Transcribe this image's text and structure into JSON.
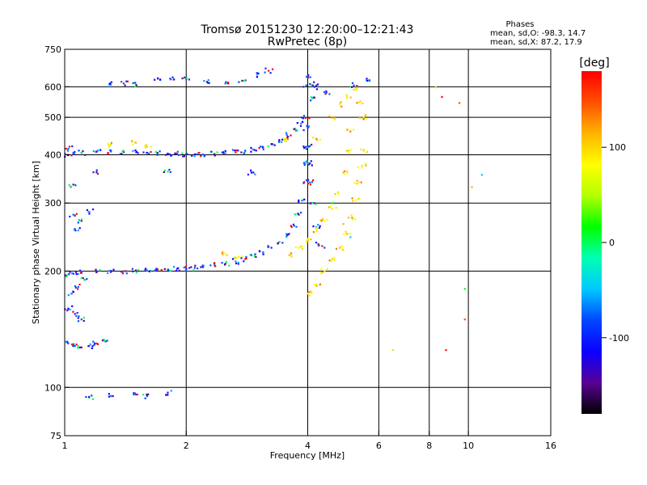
{
  "title": "Tromsø 20151230 12:20:00–12:21:43",
  "subtitle": "RwPretec (8p)",
  "stats": {
    "heading": "Phases",
    "line_o": "mean, sd,O: -98.3, 14.7",
    "line_x": "mean, sd,X: 87.2, 17.9"
  },
  "chart_data": {
    "type": "scatter",
    "x_scale": "log2",
    "y_scale": "log",
    "xlabel": "Frequency [MHz]",
    "ylabel": "Stationary phase Virtual Height [km]",
    "xlim": [
      1,
      16
    ],
    "ylim": [
      75,
      750
    ],
    "x_ticks": [
      {
        "value": 1,
        "label": "1"
      },
      {
        "value": 2,
        "label": "2"
      },
      {
        "value": 4,
        "label": "4"
      },
      {
        "value": 6,
        "label": "6"
      },
      {
        "value": 8,
        "label": "8"
      },
      {
        "value": 10,
        "label": "10"
      },
      {
        "value": 16,
        "label": "16"
      }
    ],
    "y_ticks": [
      {
        "value": 75,
        "label": "75"
      },
      {
        "value": 100,
        "label": "100"
      },
      {
        "value": 200,
        "label": "200"
      },
      {
        "value": 300,
        "label": "300"
      },
      {
        "value": 400,
        "label": "400"
      },
      {
        "value": 500,
        "label": "500"
      },
      {
        "value": 600,
        "label": "600"
      },
      {
        "value": 750,
        "label": "750"
      }
    ],
    "grid": true,
    "colorbar": {
      "label": "[deg]",
      "range": [
        -180,
        180
      ],
      "ticks": [
        {
          "value": 100,
          "label": "100"
        },
        {
          "value": 0,
          "label": "0"
        },
        {
          "value": -100,
          "label": "-100"
        }
      ],
      "colors": [
        "#000000",
        "#5a0096",
        "#0a00ff",
        "#0046ff",
        "#00c8ff",
        "#00ffb4",
        "#00ff00",
        "#b4ff00",
        "#ffff00",
        "#ffb400",
        "#ff5000",
        "#ff0000"
      ]
    },
    "series": [
      {
        "points": [
          [
            1.02,
            400
          ],
          [
            1.05,
            402
          ],
          [
            1.1,
            405
          ],
          [
            1.2,
            408
          ],
          [
            1.3,
            408
          ],
          [
            1.4,
            407
          ],
          [
            1.5,
            406
          ],
          [
            1.6,
            405
          ],
          [
            1.7,
            404
          ],
          [
            1.8,
            403
          ],
          [
            1.9,
            402
          ],
          [
            2.0,
            402
          ],
          [
            2.1,
            401
          ],
          [
            2.2,
            401
          ],
          [
            2.35,
            402
          ],
          [
            2.5,
            404
          ],
          [
            2.65,
            406
          ],
          [
            2.8,
            409
          ],
          [
            2.95,
            412
          ],
          [
            3.1,
            418
          ],
          [
            3.25,
            426
          ],
          [
            3.4,
            437
          ],
          [
            3.55,
            450
          ],
          [
            3.7,
            466
          ],
          [
            3.85,
            482
          ],
          [
            3.95,
            498
          ],
          [
            1.02,
            196
          ],
          [
            1.05,
            197
          ],
          [
            1.1,
            198
          ],
          [
            1.2,
            199
          ],
          [
            1.3,
            199
          ],
          [
            1.4,
            200
          ],
          [
            1.5,
            201
          ],
          [
            1.6,
            201
          ],
          [
            1.7,
            202
          ],
          [
            1.8,
            202
          ],
          [
            1.9,
            203
          ],
          [
            2.0,
            203
          ],
          [
            2.1,
            204
          ],
          [
            2.2,
            205
          ],
          [
            2.35,
            207
          ],
          [
            2.5,
            209
          ],
          [
            2.65,
            212
          ],
          [
            2.8,
            215
          ],
          [
            2.95,
            219
          ],
          [
            3.1,
            224
          ],
          [
            3.25,
            230
          ],
          [
            3.4,
            238
          ],
          [
            3.55,
            248
          ],
          [
            3.7,
            262
          ],
          [
            3.8,
            280
          ],
          [
            3.88,
            305
          ],
          [
            3.92,
            340
          ],
          [
            3.95,
            380
          ],
          [
            3.98,
            420
          ],
          [
            4.0,
            470
          ],
          [
            4.02,
            420
          ],
          [
            4.05,
            380
          ],
          [
            4.1,
            340
          ],
          [
            4.15,
            300
          ],
          [
            4.2,
            260
          ],
          [
            4.25,
            235
          ],
          [
            4.1,
            560
          ],
          [
            4.15,
            600
          ],
          [
            4.0,
            640
          ],
          [
            4.05,
            610
          ],
          [
            1.02,
            130
          ],
          [
            1.06,
            128
          ],
          [
            1.1,
            127
          ],
          [
            1.15,
            128
          ],
          [
            1.2,
            130
          ],
          [
            1.25,
            133
          ],
          [
            1.02,
            160
          ],
          [
            1.06,
            155
          ],
          [
            1.1,
            150
          ],
          [
            1.04,
            175
          ],
          [
            1.08,
            182
          ],
          [
            1.12,
            190
          ],
          [
            1.3,
            608
          ],
          [
            1.4,
            612
          ],
          [
            1.5,
            608
          ],
          [
            1.7,
            630
          ],
          [
            1.85,
            635
          ],
          [
            2.0,
            628
          ],
          [
            2.25,
            618
          ],
          [
            2.5,
            612
          ],
          [
            2.75,
            622
          ],
          [
            3.0,
            645
          ],
          [
            3.2,
            660
          ],
          [
            1.15,
            94
          ],
          [
            1.3,
            95
          ],
          [
            1.5,
            96
          ],
          [
            1.6,
            95
          ],
          [
            1.8,
            97
          ],
          [
            1.05,
            280
          ],
          [
            1.1,
            270
          ],
          [
            1.15,
            285
          ],
          [
            1.2,
            362
          ],
          [
            1.8,
            362
          ],
          [
            2.9,
            360
          ],
          [
            4.45,
            580
          ],
          [
            5.2,
            605
          ],
          [
            5.6,
            630
          ],
          [
            1.02,
            415
          ],
          [
            1.05,
            335
          ],
          [
            1.08,
            255
          ]
        ]
      },
      {
        "points": [
          [
            4.0,
            175
          ],
          [
            4.2,
            185
          ],
          [
            4.4,
            200
          ],
          [
            4.6,
            215
          ],
          [
            4.8,
            230
          ],
          [
            5.0,
            250
          ],
          [
            5.15,
            275
          ],
          [
            5.25,
            305
          ],
          [
            5.35,
            340
          ],
          [
            5.45,
            375
          ],
          [
            5.5,
            410
          ],
          [
            3.6,
            220
          ],
          [
            3.8,
            230
          ],
          [
            4.0,
            240
          ],
          [
            4.2,
            255
          ],
          [
            4.4,
            270
          ],
          [
            4.6,
            290
          ],
          [
            4.75,
            320
          ],
          [
            4.9,
            360
          ],
          [
            5.0,
            410
          ],
          [
            5.1,
            460
          ],
          [
            4.6,
            500
          ],
          [
            4.8,
            540
          ],
          [
            5.0,
            565
          ],
          [
            5.2,
            590
          ],
          [
            5.4,
            550
          ],
          [
            5.5,
            500
          ],
          [
            4.2,
            440
          ],
          [
            3.5,
            440
          ],
          [
            2.5,
            222
          ],
          [
            2.7,
            218
          ],
          [
            1.3,
            425
          ],
          [
            1.5,
            430
          ],
          [
            1.6,
            420
          ]
        ]
      },
      {
        "points": [
          [
            5.5,
            495
          ],
          [
            4.6,
            300
          ],
          [
            4.9,
            265
          ],
          [
            5.1,
            245
          ],
          [
            4.4,
            230
          ],
          [
            6.5,
            125
          ],
          [
            8.8,
            125
          ],
          [
            9.8,
            150
          ],
          [
            9.8,
            180
          ],
          [
            10.2,
            330
          ],
          [
            10.8,
            355
          ],
          [
            3.9,
            600
          ],
          [
            8.3,
            598
          ],
          [
            8.6,
            565
          ],
          [
            9.5,
            545
          ]
        ]
      }
    ]
  }
}
